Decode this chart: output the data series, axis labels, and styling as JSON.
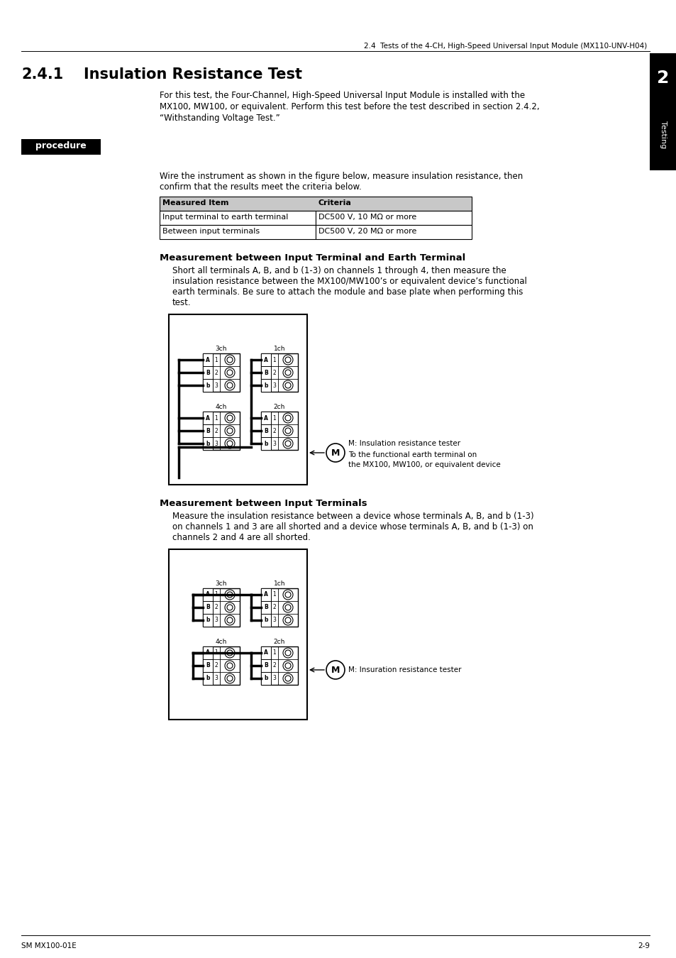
{
  "page_title": "2.4  Tests of the 4-CH, High-Speed Universal Input Module (MX110-UNV-H04)",
  "section": "2.4.1",
  "section_title": "Insulation Resistance Test",
  "intro_line1": "For this test, the Four-Channel, High-Speed Universal Input Module is installed with the",
  "intro_line2": "MX100, MW100, or equivalent. Perform this test before the test described in section 2.4.2,",
  "intro_line3": "“Withstanding Voltage Test.”",
  "procedure_label": "procedure",
  "wire_line1": "Wire the instrument as shown in the figure below, measure insulation resistance, then",
  "wire_line2": "confirm that the results meet the criteria below.",
  "table_headers": [
    "Measured Item",
    "Criteria"
  ],
  "table_rows": [
    [
      "Input terminal to earth terminal",
      "DC500 V, 10 MΩ or more"
    ],
    [
      "Between input terminals",
      "DC500 V, 20 MΩ or more"
    ]
  ],
  "section2_title": "Measurement between Input Terminal and Earth Terminal",
  "section2_lines": [
    "Short all terminals A, B, and b (1-3) on channels 1 through 4, then measure the",
    "insulation resistance between the MX100/MW100’s or equivalent device’s functional",
    "earth terminals. Be sure to attach the module and base plate when performing this",
    "test."
  ],
  "section3_title": "Measurement between Input Terminals",
  "section3_lines": [
    "Measure the insulation resistance between a device whose terminals A, B, and b (1-3)",
    "on channels 1 and 3 are all shorted and a device whose terminals A, B, and b (1-3) on",
    "channels 2 and 4 are all shorted."
  ],
  "fig1_label_M": "M: Insulation resistance tester",
  "fig1_label_arrow": "To the functional earth terminal on\nthe MX100, MW100, or equivalent device",
  "fig2_label_M": "M: Insuration resistance tester",
  "sidebar_number": "2",
  "sidebar_text": "Testing",
  "footer_left": "SM MX100-01E",
  "footer_right": "2-9",
  "bg_color": "#ffffff",
  "text_color": "#000000",
  "sidebar_bg": "#000000",
  "sidebar_text_color": "#ffffff",
  "procedure_bg": "#000000",
  "procedure_text_color": "#ffffff",
  "table_header_bg": "#c8c8c8",
  "table_border": "#000000"
}
